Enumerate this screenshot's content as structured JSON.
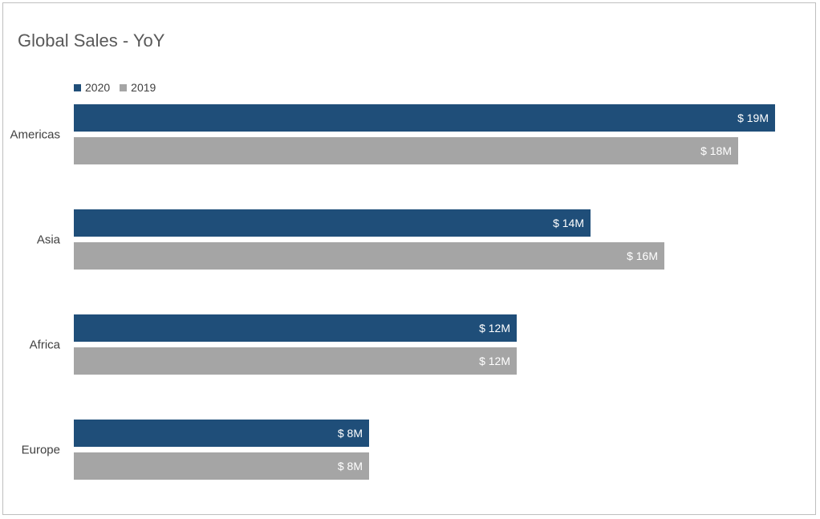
{
  "chart_data": {
    "type": "bar",
    "orientation": "horizontal",
    "title": "Global Sales - YoY",
    "categories": [
      "Americas",
      "Asia",
      "Africa",
      "Europe"
    ],
    "series": [
      {
        "name": "2020",
        "color": "#1f4e79",
        "values": [
          19,
          14,
          12,
          8
        ],
        "labels": [
          "$ 19M",
          "$ 14M",
          "$ 12M",
          "$ 8M"
        ]
      },
      {
        "name": "2019",
        "color": "#a5a5a5",
        "values": [
          18,
          16,
          12,
          8
        ],
        "labels": [
          "$ 18M",
          "$ 16M",
          "$ 12M",
          "$ 8M"
        ]
      }
    ],
    "xlim": [
      0,
      20
    ],
    "legend_position": "top-left",
    "grid": false
  }
}
